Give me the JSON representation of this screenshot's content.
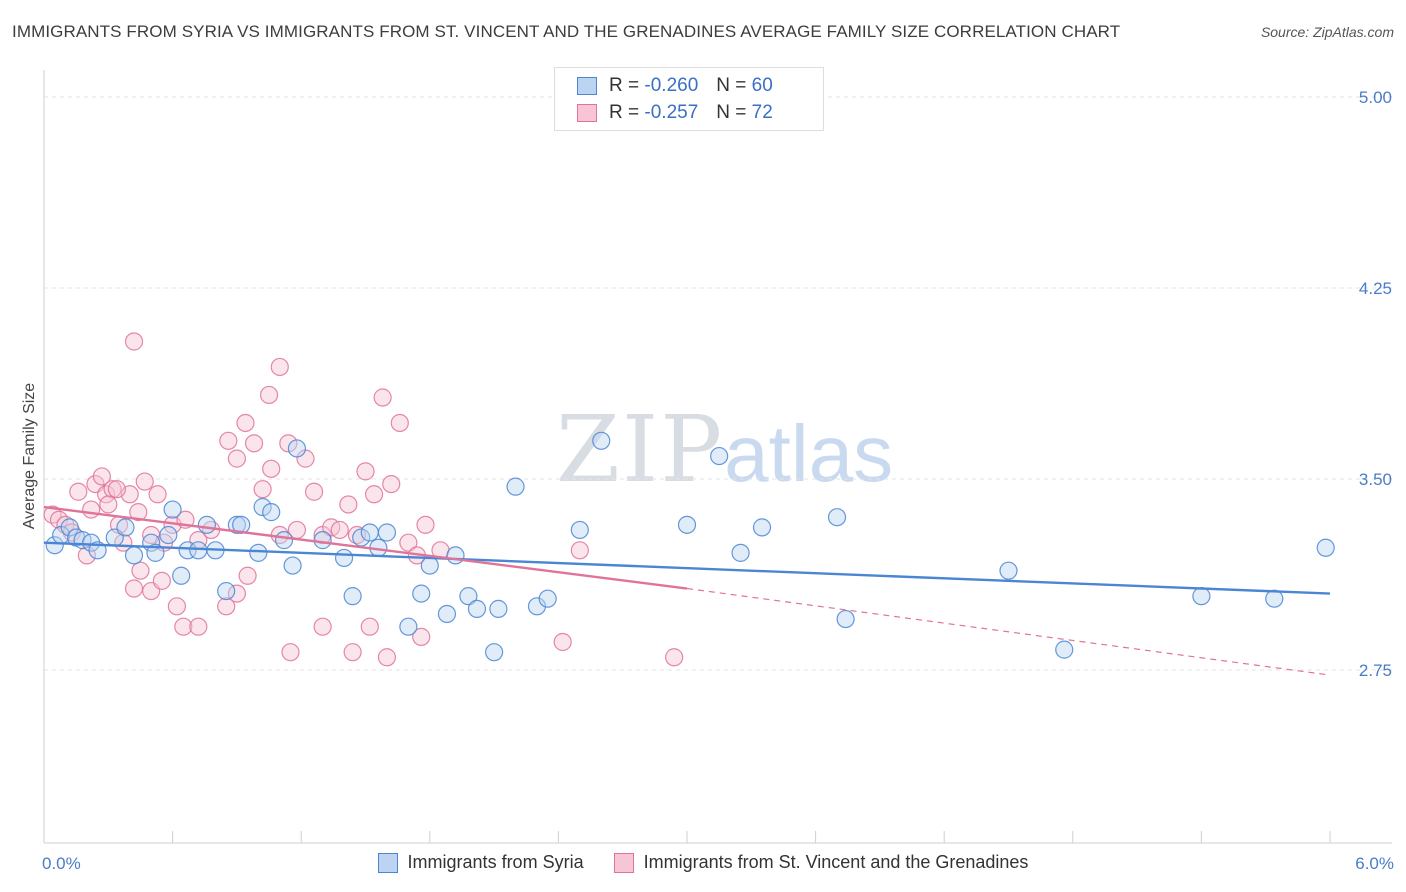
{
  "title": "IMMIGRANTS FROM SYRIA VS IMMIGRANTS FROM ST. VINCENT AND THE GRENADINES AVERAGE FAMILY SIZE CORRELATION CHART",
  "source": "Source: ZipAtlas.com",
  "watermark": {
    "zip": "ZIP",
    "atlas": "atlas"
  },
  "legend": {
    "rows": [
      {
        "r_label": "R = ",
        "r_value": "-0.260",
        "n_label": "N = ",
        "n_value": "60"
      },
      {
        "r_label": "R = ",
        "r_value": "-0.257",
        "n_label": "N = ",
        "n_value": "72"
      }
    ]
  },
  "chart_data": {
    "type": "scatter",
    "title": "IMMIGRANTS FROM SYRIA VS IMMIGRANTS FROM ST. VINCENT AND THE GRENADINES AVERAGE FAMILY SIZE CORRELATION CHART",
    "xlabel": "",
    "ylabel": "Average Family Size",
    "xlim": [
      0,
      6
    ],
    "ylim": [
      2.0,
      5.05
    ],
    "x_tick_labels": [
      {
        "value": 0,
        "label": "0.0%"
      },
      {
        "value": 6,
        "label": "6.0%"
      }
    ],
    "y_ticks": [
      {
        "value": 5.0,
        "label": "5.00"
      },
      {
        "value": 4.25,
        "label": "4.25"
      },
      {
        "value": 3.5,
        "label": "3.50"
      },
      {
        "value": 2.75,
        "label": "2.75"
      }
    ],
    "grid": true,
    "legend_position": "top-center",
    "series": [
      {
        "name": "Immigrants from Syria",
        "color": "#4a86d4",
        "fill": "#bcd4f2",
        "r": -0.26,
        "n": 60,
        "trend": {
          "x": [
            0.0,
            6.0
          ],
          "y": [
            3.25,
            3.05
          ],
          "dashed_from": null
        },
        "points": [
          [
            0.05,
            3.24
          ],
          [
            0.08,
            3.28
          ],
          [
            0.12,
            3.31
          ],
          [
            0.15,
            3.27
          ],
          [
            0.18,
            3.26
          ],
          [
            0.22,
            3.25
          ],
          [
            0.25,
            3.22
          ],
          [
            0.33,
            3.27
          ],
          [
            0.38,
            3.31
          ],
          [
            0.42,
            3.2
          ],
          [
            0.5,
            3.25
          ],
          [
            0.52,
            3.21
          ],
          [
            0.58,
            3.28
          ],
          [
            0.6,
            3.38
          ],
          [
            0.64,
            3.12
          ],
          [
            0.67,
            3.22
          ],
          [
            0.72,
            3.22
          ],
          [
            0.76,
            3.32
          ],
          [
            0.8,
            3.22
          ],
          [
            0.85,
            3.06
          ],
          [
            0.9,
            3.32
          ],
          [
            0.92,
            3.32
          ],
          [
            1.0,
            3.21
          ],
          [
            1.02,
            3.39
          ],
          [
            1.06,
            3.37
          ],
          [
            1.12,
            3.26
          ],
          [
            1.16,
            3.16
          ],
          [
            1.18,
            3.62
          ],
          [
            1.3,
            3.26
          ],
          [
            1.4,
            3.19
          ],
          [
            1.44,
            3.04
          ],
          [
            1.48,
            3.27
          ],
          [
            1.52,
            3.29
          ],
          [
            1.56,
            3.23
          ],
          [
            1.6,
            3.29
          ],
          [
            1.7,
            2.92
          ],
          [
            1.76,
            3.05
          ],
          [
            1.8,
            3.16
          ],
          [
            1.88,
            2.97
          ],
          [
            1.92,
            3.2
          ],
          [
            1.98,
            3.04
          ],
          [
            2.02,
            2.99
          ],
          [
            2.1,
            2.82
          ],
          [
            2.12,
            2.99
          ],
          [
            2.2,
            3.47
          ],
          [
            2.3,
            3.0
          ],
          [
            2.35,
            3.03
          ],
          [
            2.5,
            3.3
          ],
          [
            2.6,
            3.65
          ],
          [
            3.0,
            3.32
          ],
          [
            3.15,
            3.59
          ],
          [
            3.25,
            3.21
          ],
          [
            3.35,
            3.31
          ],
          [
            3.7,
            3.35
          ],
          [
            3.74,
            2.95
          ],
          [
            4.5,
            3.14
          ],
          [
            4.76,
            2.83
          ],
          [
            5.4,
            3.04
          ],
          [
            5.74,
            3.03
          ],
          [
            5.98,
            3.23
          ]
        ]
      },
      {
        "name": "Immigrants from St. Vincent and the Grenadines",
        "color": "#e07399",
        "fill": "#f7c5d5",
        "r": -0.257,
        "n": 72,
        "trend": {
          "x": [
            0.0,
            3.0
          ],
          "y": [
            3.39,
            3.07
          ],
          "dashed_to": [
            6.0,
            2.73
          ]
        },
        "points": [
          [
            0.04,
            3.36
          ],
          [
            0.07,
            3.34
          ],
          [
            0.1,
            3.32
          ],
          [
            0.13,
            3.29
          ],
          [
            0.16,
            3.45
          ],
          [
            0.2,
            3.2
          ],
          [
            0.22,
            3.38
          ],
          [
            0.24,
            3.48
          ],
          [
            0.27,
            3.51
          ],
          [
            0.29,
            3.44
          ],
          [
            0.32,
            3.46
          ],
          [
            0.35,
            3.32
          ],
          [
            0.37,
            3.25
          ],
          [
            0.4,
            3.44
          ],
          [
            0.44,
            3.37
          ],
          [
            0.47,
            3.49
          ],
          [
            0.5,
            3.28
          ],
          [
            0.53,
            3.44
          ],
          [
            0.56,
            3.25
          ],
          [
            0.6,
            3.32
          ],
          [
            0.66,
            3.34
          ],
          [
            0.72,
            3.26
          ],
          [
            0.78,
            3.3
          ],
          [
            0.86,
            3.65
          ],
          [
            0.9,
            3.58
          ],
          [
            0.94,
            3.72
          ],
          [
            0.98,
            3.64
          ],
          [
            1.02,
            3.46
          ],
          [
            1.06,
            3.54
          ],
          [
            1.1,
            3.28
          ],
          [
            1.14,
            3.64
          ],
          [
            1.18,
            3.3
          ],
          [
            1.22,
            3.58
          ],
          [
            1.26,
            3.45
          ],
          [
            1.3,
            3.28
          ],
          [
            1.34,
            3.31
          ],
          [
            1.38,
            3.3
          ],
          [
            1.42,
            3.4
          ],
          [
            1.46,
            3.28
          ],
          [
            1.5,
            3.53
          ],
          [
            1.54,
            3.44
          ],
          [
            1.58,
            3.82
          ],
          [
            1.62,
            3.48
          ],
          [
            1.66,
            3.72
          ],
          [
            1.7,
            3.25
          ],
          [
            1.74,
            3.2
          ],
          [
            1.78,
            3.32
          ],
          [
            0.42,
            4.04
          ],
          [
            0.42,
            3.07
          ],
          [
            0.45,
            3.14
          ],
          [
            0.5,
            3.06
          ],
          [
            0.62,
            3.0
          ],
          [
            0.65,
            2.92
          ],
          [
            0.72,
            2.92
          ],
          [
            0.85,
            3.0
          ],
          [
            0.9,
            3.05
          ],
          [
            0.95,
            3.12
          ],
          [
            1.1,
            3.94
          ],
          [
            1.05,
            3.83
          ],
          [
            1.15,
            2.82
          ],
          [
            1.3,
            2.92
          ],
          [
            1.44,
            2.82
          ],
          [
            1.52,
            2.92
          ],
          [
            1.6,
            2.8
          ],
          [
            1.76,
            2.88
          ],
          [
            1.85,
            3.22
          ],
          [
            2.42,
            2.86
          ],
          [
            2.5,
            3.22
          ],
          [
            2.94,
            2.8
          ],
          [
            0.55,
            3.1
          ],
          [
            0.3,
            3.4
          ],
          [
            0.34,
            3.46
          ]
        ]
      }
    ]
  }
}
